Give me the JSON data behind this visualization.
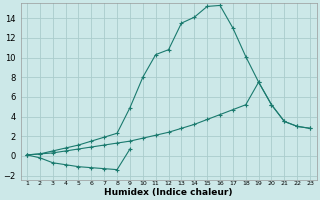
{
  "xlabel": "Humidex (Indice chaleur)",
  "background_color": "#cce8e8",
  "grid_color": "#aacccc",
  "line_color": "#1a7a6e",
  "x": [
    1,
    2,
    3,
    4,
    5,
    6,
    7,
    8,
    9,
    10,
    11,
    12,
    13,
    14,
    15,
    16,
    17,
    18,
    19,
    20,
    21,
    22,
    23
  ],
  "series1_x": [
    1,
    2,
    3,
    4,
    5,
    6,
    7,
    8,
    9
  ],
  "series1_y": [
    0.1,
    -0.2,
    -0.7,
    -0.9,
    -1.1,
    -1.2,
    -1.3,
    -1.4,
    0.7
  ],
  "series2": [
    0.1,
    0.2,
    0.3,
    0.5,
    0.7,
    0.9,
    1.1,
    1.3,
    1.5,
    1.8,
    2.1,
    2.4,
    2.8,
    3.2,
    3.7,
    4.2,
    4.7,
    5.2,
    7.5,
    5.2,
    3.5,
    3.0,
    2.8
  ],
  "series3": [
    0.1,
    0.2,
    0.5,
    0.8,
    1.1,
    1.5,
    1.9,
    2.3,
    4.9,
    8.0,
    10.3,
    10.8,
    13.5,
    14.1,
    15.2,
    15.3,
    13.0,
    10.1,
    7.5,
    5.2,
    3.5,
    3.0,
    2.8
  ],
  "ylim": [
    -2.5,
    15.5
  ],
  "yticks": [
    -2,
    0,
    2,
    4,
    6,
    8,
    10,
    12,
    14
  ],
  "xticks": [
    1,
    2,
    3,
    4,
    5,
    6,
    7,
    8,
    9,
    10,
    11,
    12,
    13,
    14,
    15,
    16,
    17,
    18,
    19,
    20,
    21,
    22,
    23
  ]
}
